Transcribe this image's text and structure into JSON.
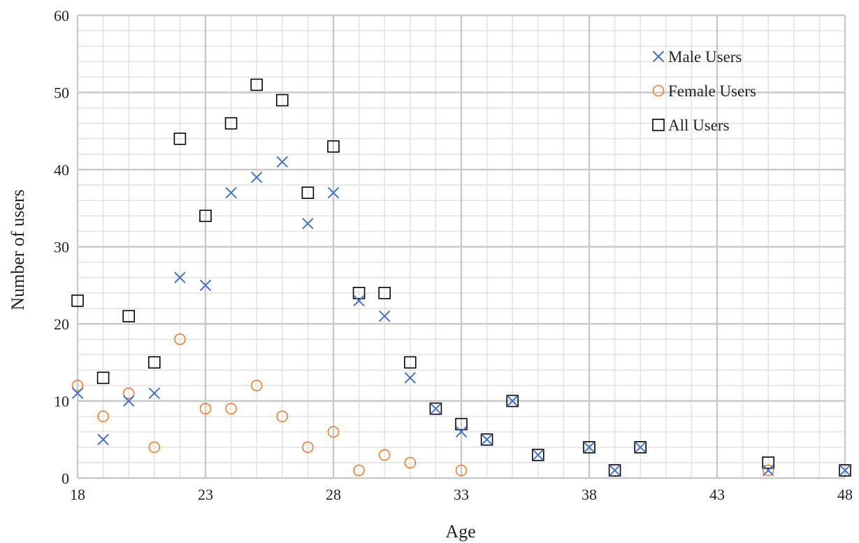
{
  "chart_data": {
    "type": "scatter",
    "title": "",
    "xlabel": "Age",
    "ylabel": "Number of users",
    "xlim": [
      18,
      48
    ],
    "ylim": [
      0,
      60
    ],
    "x_ticks": [
      "18",
      "23",
      "28",
      "33",
      "38",
      "43",
      "48"
    ],
    "y_ticks": [
      "0",
      "10",
      "20",
      "30",
      "40",
      "50",
      "60"
    ],
    "grid": "on",
    "legend_position": "top-right",
    "series": [
      {
        "name": "Male Users",
        "marker": "x",
        "color": "#4472C4",
        "points": [
          [
            18,
            11
          ],
          [
            19,
            5
          ],
          [
            20,
            10
          ],
          [
            21,
            11
          ],
          [
            22,
            26
          ],
          [
            23,
            25
          ],
          [
            24,
            37
          ],
          [
            25,
            39
          ],
          [
            26,
            41
          ],
          [
            27,
            33
          ],
          [
            28,
            37
          ],
          [
            29,
            23
          ],
          [
            30,
            21
          ],
          [
            31,
            13
          ],
          [
            32,
            9
          ],
          [
            33,
            6
          ],
          [
            34,
            5
          ],
          [
            35,
            10
          ],
          [
            36,
            3
          ],
          [
            38,
            4
          ],
          [
            39,
            1
          ],
          [
            40,
            4
          ],
          [
            45,
            1
          ],
          [
            48,
            1
          ]
        ]
      },
      {
        "name": "Female Users",
        "marker": "circle",
        "color": "#ED7D31",
        "points": [
          [
            18,
            12
          ],
          [
            19,
            8
          ],
          [
            20,
            11
          ],
          [
            21,
            4
          ],
          [
            22,
            18
          ],
          [
            23,
            9
          ],
          [
            24,
            9
          ],
          [
            25,
            12
          ],
          [
            26,
            8
          ],
          [
            27,
            4
          ],
          [
            28,
            6
          ],
          [
            29,
            1
          ],
          [
            30,
            3
          ],
          [
            31,
            2
          ],
          [
            33,
            1
          ],
          [
            45,
            1
          ]
        ]
      },
      {
        "name": "All Users",
        "marker": "square",
        "color": "#000000",
        "points": [
          [
            18,
            23
          ],
          [
            19,
            13
          ],
          [
            20,
            21
          ],
          [
            21,
            15
          ],
          [
            22,
            44
          ],
          [
            23,
            34
          ],
          [
            24,
            46
          ],
          [
            25,
            51
          ],
          [
            26,
            49
          ],
          [
            27,
            37
          ],
          [
            28,
            43
          ],
          [
            29,
            24
          ],
          [
            30,
            24
          ],
          [
            31,
            15
          ],
          [
            32,
            9
          ],
          [
            33,
            7
          ],
          [
            34,
            5
          ],
          [
            35,
            10
          ],
          [
            36,
            3
          ],
          [
            38,
            4
          ],
          [
            39,
            1
          ],
          [
            40,
            4
          ],
          [
            45,
            2
          ],
          [
            48,
            1
          ]
        ]
      }
    ]
  },
  "colors": {
    "major_grid": "#c9c9c9",
    "minor_grid": "#e3e3e3"
  }
}
